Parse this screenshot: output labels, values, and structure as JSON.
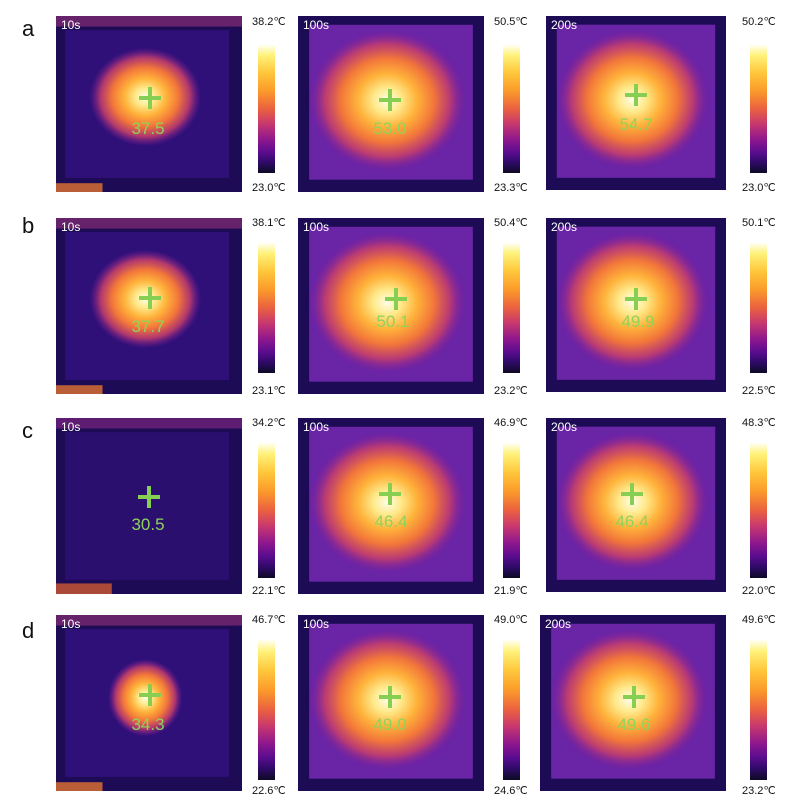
{
  "rows": [
    {
      "label": "a",
      "panels": [
        {
          "time": "10s",
          "center_temp": "37.5",
          "scale_max": "38.2℃",
          "scale_min": "23.0℃",
          "hot_spot_intensity": 0.62
        },
        {
          "time": "100s",
          "center_temp": "53.0",
          "scale_max": "50.5℃",
          "scale_min": "23.3℃",
          "hot_spot_intensity": 1.0
        },
        {
          "time": "200s",
          "center_temp": "54.7",
          "scale_max": "50.2℃",
          "scale_min": "23.0℃",
          "hot_spot_intensity": 1.0
        }
      ]
    },
    {
      "label": "b",
      "panels": [
        {
          "time": "10s",
          "center_temp": "37.7",
          "scale_max": "38.1℃",
          "scale_min": "23.1℃",
          "hot_spot_intensity": 0.62
        },
        {
          "time": "100s",
          "center_temp": "50.1",
          "scale_max": "50.4℃",
          "scale_min": "23.2℃",
          "hot_spot_intensity": 1.0
        },
        {
          "time": "200s",
          "center_temp": "49.9",
          "scale_max": "50.1℃",
          "scale_min": "22.5℃",
          "hot_spot_intensity": 0.95
        }
      ]
    },
    {
      "label": "c",
      "panels": [
        {
          "time": "10s",
          "center_temp": "30.5",
          "scale_max": "34.2℃",
          "scale_min": "22.1℃",
          "hot_spot_intensity": 0.0
        },
        {
          "time": "100s",
          "center_temp": "46.4",
          "scale_max": "46.9℃",
          "scale_min": "21.9℃",
          "hot_spot_intensity": 0.9
        },
        {
          "time": "200s",
          "center_temp": "46.4",
          "scale_max": "48.3℃",
          "scale_min": "22.0℃",
          "hot_spot_intensity": 0.9
        }
      ]
    },
    {
      "label": "d",
      "panels": [
        {
          "time": "10s",
          "center_temp": "34.3",
          "scale_max": "46.7℃",
          "scale_min": "22.6℃",
          "hot_spot_intensity": 0.45
        },
        {
          "time": "100s",
          "center_temp": "49.0",
          "scale_max": "49.0℃",
          "scale_min": "24.6℃",
          "hot_spot_intensity": 0.95
        },
        {
          "time": "200s",
          "center_temp": "49.6",
          "scale_max": "49.6℃",
          "scale_min": "23.2℃",
          "hot_spot_intensity": 0.95
        }
      ]
    }
  ],
  "colors": {
    "readout": "#8fd35a",
    "crosshair": "#86cf52",
    "background_cold": "#1c0b52",
    "plate": "#6a23a8"
  }
}
